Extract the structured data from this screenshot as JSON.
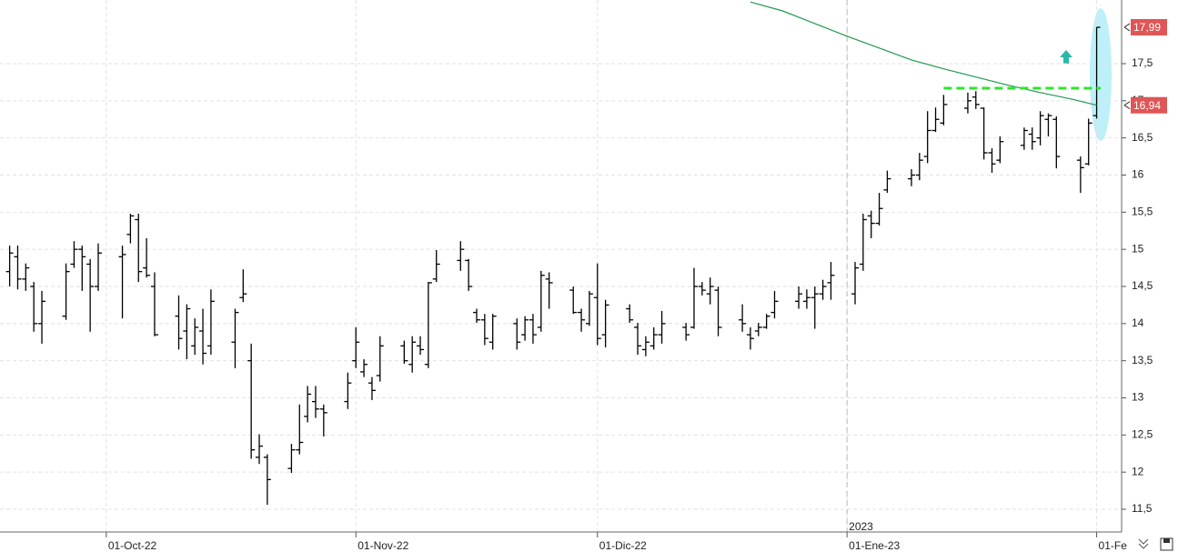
{
  "chart_data": {
    "type": "ohlc",
    "bar_color": "#000000",
    "grid": true,
    "xlim": [
      -13.2,
      126.1
    ],
    "ylim": [
      11.194,
      18.357
    ],
    "yticks": [
      {
        "value": 11.5,
        "label": "11,5"
      },
      12,
      {
        "value": 12.5,
        "label": "12,5"
      },
      13,
      {
        "value": 13.5,
        "label": "13,5"
      },
      14,
      {
        "value": 14.5,
        "label": "14,5"
      },
      15,
      {
        "value": 15.5,
        "label": "15,5"
      },
      16,
      {
        "value": 16.5,
        "label": "16,5"
      },
      17,
      {
        "value": 17.5,
        "label": "17,5"
      }
    ],
    "xticks": [
      {
        "value": 0,
        "label": "01-Oct-22"
      },
      {
        "value": 31,
        "label": "01-Nov-22"
      },
      {
        "value": 61,
        "label": "01-Dic-22"
      },
      {
        "value": 92,
        "label": "01-Ene-23"
      },
      {
        "value": 123,
        "label": "01-Fe"
      }
    ],
    "year_separator": {
      "value": 92,
      "label": "2023"
    },
    "x": [
      -12,
      -11,
      -10,
      -9,
      -8,
      -5,
      -4,
      -3,
      -2,
      -1,
      2,
      3,
      4,
      5,
      6,
      9,
      10,
      11,
      12,
      13,
      16,
      17,
      18,
      19,
      20,
      23,
      24,
      25,
      26,
      27,
      30,
      31,
      32,
      33,
      34,
      37,
      38,
      39,
      40,
      41,
      44,
      45,
      46,
      47,
      48,
      51,
      52,
      53,
      54,
      55,
      58,
      59,
      60,
      61,
      62,
      65,
      66,
      67,
      68,
      69,
      72,
      73,
      74,
      75,
      76,
      79,
      80,
      81,
      82,
      83,
      86,
      87,
      88,
      89,
      90,
      93,
      94,
      95,
      96,
      97,
      100,
      101,
      102,
      103,
      104,
      107,
      108,
      109,
      110,
      111,
      114,
      115,
      116,
      117,
      118,
      121,
      122,
      123
    ],
    "open": [
      14.7,
      14.9,
      14.6,
      14.5,
      14.0,
      14.1,
      14.8,
      15.0,
      14.8,
      14.5,
      14.9,
      15.2,
      15.4,
      14.75,
      14.5,
      14.1,
      13.9,
      13.7,
      13.9,
      13.7,
      13.75,
      14.35,
      13.5,
      12.2,
      12.2,
      12.05,
      12.3,
      12.75,
      12.95,
      12.85,
      12.95,
      13.5,
      13.35,
      13.2,
      13.3,
      13.7,
      13.45,
      13.7,
      13.45,
      14.6,
      14.85,
      14.85,
      14.15,
      14.05,
      13.75,
      14.0,
      13.85,
      14.05,
      13.95,
      14.6,
      14.45,
      14.15,
      14.0,
      14.35,
      13.85,
      14.2,
      13.95,
      13.65,
      13.7,
      13.85,
      13.95,
      13.95,
      14.5,
      14.4,
      14.45,
      14.05,
      13.85,
      13.9,
      13.95,
      14.15,
      14.3,
      14.3,
      14.35,
      14.4,
      14.55,
      14.4,
      14.8,
      15.45,
      15.35,
      15.8,
      15.95,
      16.0,
      16.25,
      16.6,
      16.7,
      16.9,
      17.05,
      16.9,
      16.3,
      16.2,
      16.4,
      16.55,
      16.5,
      16.75,
      16.75,
      16.2,
      16.15,
      16.8
    ],
    "high": [
      15.05,
      15.05,
      14.81,
      14.56,
      14.44,
      14.81,
      15.11,
      15.05,
      14.87,
      15.08,
      15.05,
      15.48,
      15.48,
      15.15,
      14.69,
      14.38,
      14.26,
      14.07,
      14.2,
      14.46,
      14.2,
      14.73,
      13.73,
      12.51,
      12.24,
      12.38,
      12.91,
      13.16,
      13.16,
      12.91,
      13.34,
      13.95,
      13.52,
      13.28,
      13.83,
      13.77,
      13.83,
      13.83,
      14.56,
      14.99,
      15.11,
      14.87,
      14.2,
      14.13,
      14.13,
      14.07,
      14.1,
      14.13,
      14.71,
      14.69,
      14.5,
      14.2,
      14.44,
      14.81,
      14.32,
      14.26,
      14.01,
      13.83,
      13.95,
      14.17,
      14.01,
      14.75,
      14.56,
      14.62,
      14.5,
      14.26,
      13.95,
      14.01,
      14.13,
      14.44,
      14.5,
      14.46,
      14.5,
      14.59,
      14.83,
      14.83,
      15.48,
      15.52,
      15.76,
      16.06,
      16.08,
      16.3,
      16.86,
      16.91,
      17.08,
      17.11,
      17.13,
      16.91,
      16.36,
      16.52,
      16.64,
      16.64,
      16.86,
      16.83,
      16.79,
      16.25,
      16.76,
      17.99
    ],
    "low": [
      14.5,
      14.46,
      14.44,
      13.89,
      13.73,
      14.05,
      14.75,
      14.44,
      13.89,
      14.44,
      14.07,
      15.08,
      14.56,
      14.62,
      13.83,
      13.65,
      13.52,
      13.58,
      13.45,
      13.58,
      13.4,
      14.29,
      12.18,
      12.11,
      11.56,
      11.99,
      12.24,
      12.67,
      12.73,
      12.48,
      12.85,
      13.4,
      13.28,
      12.97,
      13.22,
      13.46,
      13.34,
      13.58,
      13.4,
      14.56,
      14.71,
      14.44,
      14.01,
      13.71,
      13.65,
      13.65,
      13.77,
      13.73,
      13.89,
      14.2,
      14.13,
      13.89,
      13.97,
      13.71,
      13.68,
      14.01,
      13.58,
      13.56,
      13.65,
      13.73,
      13.77,
      13.93,
      14.38,
      14.26,
      13.83,
      13.89,
      13.65,
      13.83,
      13.93,
      14.07,
      14.2,
      14.2,
      13.93,
      14.32,
      14.32,
      14.26,
      14.71,
      15.15,
      15.32,
      15.76,
      15.85,
      15.93,
      16.16,
      16.58,
      16.67,
      16.83,
      16.89,
      16.21,
      16.03,
      16.16,
      16.34,
      16.34,
      16.4,
      16.52,
      16.09,
      15.76,
      16.13,
      16.76
    ],
    "close": [
      14.95,
      14.6,
      14.75,
      14.0,
      14.3,
      14.7,
      15.0,
      14.9,
      14.5,
      14.95,
      14.93,
      15.45,
      14.7,
      14.65,
      13.85,
      13.8,
      14.2,
      13.95,
      13.6,
      14.3,
      14.15,
      14.4,
      12.3,
      12.35,
      11.9,
      12.3,
      12.4,
      13.05,
      12.85,
      12.8,
      13.2,
      13.75,
      13.45,
      13.1,
      13.7,
      13.5,
      13.75,
      13.65,
      14.55,
      14.8,
      15.0,
      14.5,
      14.05,
      13.8,
      14.1,
      13.75,
      14.05,
      13.85,
      14.65,
      14.55,
      14.15,
      14.05,
      14.4,
      13.8,
      14.25,
      14.05,
      13.7,
      13.75,
      13.85,
      14.0,
      13.85,
      14.5,
      14.45,
      14.5,
      13.95,
      14.0,
      13.8,
      13.95,
      14.1,
      14.3,
      14.4,
      14.35,
      14.4,
      14.5,
      14.65,
      14.75,
      15.4,
      15.35,
      15.55,
      15.95,
      16.0,
      16.2,
      16.6,
      16.75,
      16.95,
      17.0,
      16.95,
      16.3,
      16.15,
      16.45,
      16.6,
      16.45,
      16.8,
      16.8,
      16.25,
      16.1,
      16.7,
      17.99
    ],
    "overlays": [
      {
        "type": "line",
        "color": "#1f9a4e",
        "x": [
          80,
          84,
          88,
          92,
          96,
          100,
          104,
          108,
          112,
          116,
          120,
          123
        ],
        "values": [
          18.33,
          18.21,
          18.04,
          17.87,
          17.71,
          17.55,
          17.43,
          17.32,
          17.21,
          17.11,
          17.02,
          16.94
        ]
      },
      {
        "type": "hline",
        "color": "#2ee62a",
        "y": 17.17,
        "x": [
          104,
          123.5
        ]
      }
    ],
    "price_labels": [
      {
        "value": 17.99,
        "label": "17,99"
      },
      {
        "value": 16.94,
        "label": "16,94"
      }
    ],
    "price_label_color": "#e05555"
  }
}
